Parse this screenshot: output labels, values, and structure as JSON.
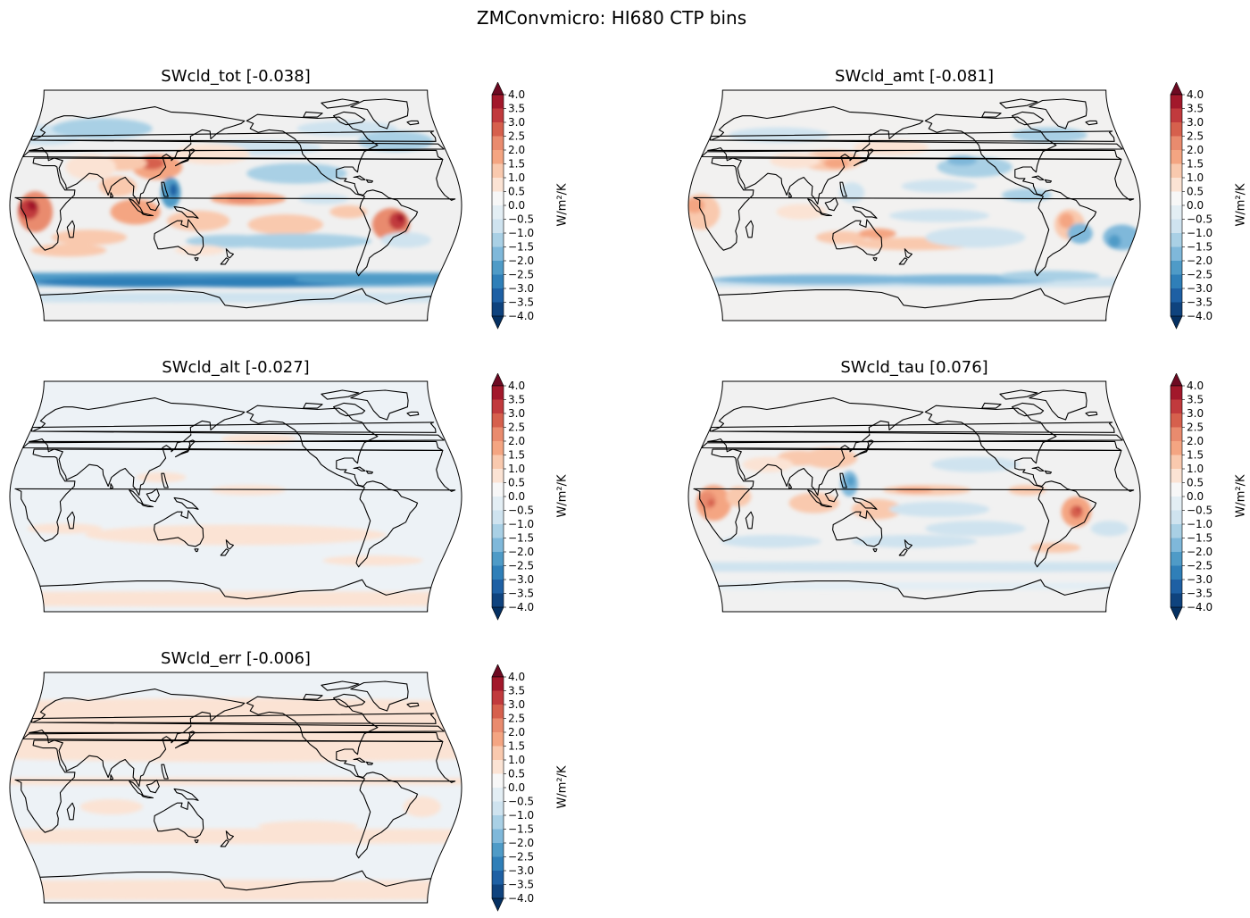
{
  "figure": {
    "title": "ZMConvmicro: HI680 CTP bins"
  },
  "colorbar": {
    "label": "W/m²/K",
    "ticks": [
      "4.0",
      "3.5",
      "3.0",
      "2.5",
      "2.0",
      "1.5",
      "1.0",
      "0.5",
      "0.0",
      "−0.5",
      "−1.0",
      "−1.5",
      "−2.0",
      "−2.5",
      "−3.0",
      "−3.5",
      "−4.0"
    ],
    "colors": [
      "#6d0a22",
      "#a2182b",
      "#c13a3d",
      "#d6604d",
      "#e98b6e",
      "#f4a582",
      "#f9c9ae",
      "#fbe3d4",
      "#f7f7f7",
      "#e3eef4",
      "#cfe3ef",
      "#a9d0e5",
      "#7fb8da",
      "#4f9bc7",
      "#2f7fb8",
      "#1e60a4",
      "#0f437e",
      "#053061"
    ]
  },
  "panels": [
    {
      "title": "SWcld_tot [-0.038]",
      "variable": "SWcld_tot",
      "global_mean": -0.038,
      "pattern": "strong"
    },
    {
      "title": "SWcld_amt [-0.081]",
      "variable": "SWcld_amt",
      "global_mean": -0.081,
      "pattern": "moderate"
    },
    {
      "title": "SWcld_alt [-0.027]",
      "variable": "SWcld_alt",
      "global_mean": -0.027,
      "pattern": "weak-neg"
    },
    {
      "title": "SWcld_tau [0.076]",
      "variable": "SWcld_tau",
      "global_mean": 0.076,
      "pattern": "tau"
    },
    {
      "title": "SWcld_err [-0.006]",
      "variable": "SWcld_err",
      "global_mean": -0.006,
      "pattern": "weak-pos"
    }
  ]
}
